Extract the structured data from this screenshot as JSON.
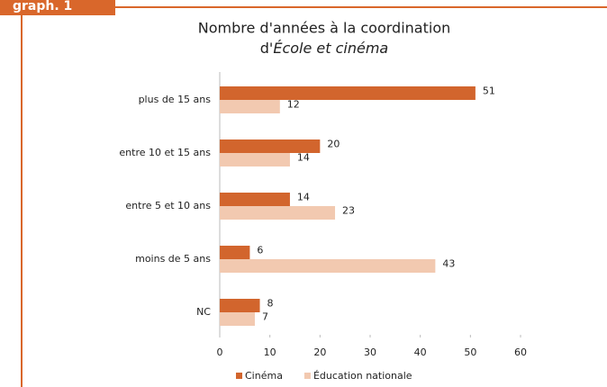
{
  "tab_label": "graph. 1",
  "chart_data": {
    "type": "hbar",
    "title_lines": [
      "Nombre d'années à la coordination",
      [
        "d'",
        "École et cinéma"
      ]
    ],
    "categories": [
      "plus de 15 ans",
      "entre 10 et 15 ans",
      "entre 5 et 10 ans",
      "moins de 5 ans",
      "NC"
    ],
    "series": [
      {
        "name": "Cinéma",
        "color": "#d2652d",
        "values": [
          51,
          20,
          14,
          6,
          8
        ]
      },
      {
        "name": "Éducation nationale",
        "color": "#f2c9b0",
        "values": [
          12,
          14,
          23,
          43,
          7
        ]
      }
    ],
    "xlim": [
      0,
      60
    ],
    "xticks": [
      0,
      10,
      20,
      30,
      40,
      50,
      60
    ],
    "legend": "bottom"
  }
}
